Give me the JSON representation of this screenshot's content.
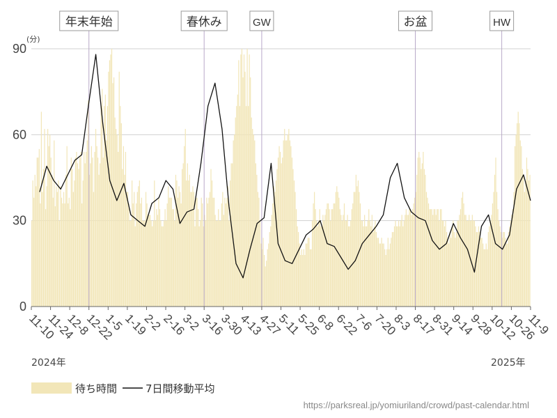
{
  "chart_data": {
    "type": "bar",
    "ylabel": "(分)",
    "ylim": [
      0,
      90
    ],
    "yticks": [
      0,
      30,
      60,
      90
    ],
    "x_tick_labels": [
      "11-10",
      "11-24",
      "12-8",
      "12-22",
      "1-5",
      "1-19",
      "2-2",
      "2-16",
      "3-2",
      "3-16",
      "3-30",
      "4-13",
      "4-27",
      "5-11",
      "5-25",
      "6-8",
      "6-22",
      "7-6",
      "7-20",
      "8-3",
      "8-17",
      "8-31",
      "9-14",
      "9-28",
      "10-12",
      "10-26",
      "11-9"
    ],
    "year_start": "2024年",
    "year_end": "2025年",
    "events": [
      {
        "label": "年末年始",
        "week": 6.0
      },
      {
        "label": "春休み",
        "week": 18.0
      },
      {
        "label": "GW",
        "week": 24.0
      },
      {
        "label": "お盆",
        "week": 40.0
      },
      {
        "label": "HW",
        "week": 49.0
      }
    ],
    "grid": true,
    "series": [
      {
        "name": "待ち時間",
        "color": "#f2e6b8",
        "values": [
          30,
          44,
          38,
          46,
          42,
          52,
          52,
          55,
          36,
          68,
          40,
          48,
          62,
          34,
          42,
          62,
          56,
          60,
          52,
          46,
          38,
          58,
          35,
          42,
          40,
          44,
          30,
          42,
          38,
          36,
          40,
          36,
          46,
          56,
          36,
          38,
          34,
          52,
          48,
          40,
          44,
          52,
          54,
          50,
          48,
          52,
          54,
          36,
          44,
          54,
          50,
          54,
          58,
          72,
          46,
          50,
          56,
          52,
          40,
          54,
          62,
          56,
          52,
          46,
          50,
          70,
          76,
          52,
          70,
          74,
          58,
          70,
          82,
          86,
          88,
          90,
          78,
          80,
          66,
          62,
          60,
          54,
          82,
          70,
          64,
          48,
          56,
          46,
          54,
          40,
          40,
          36,
          30,
          30,
          44,
          36,
          40,
          28,
          36,
          40,
          42,
          44,
          36,
          38,
          30,
          30,
          30,
          40,
          36,
          32,
          32,
          32,
          30,
          28,
          30,
          44,
          30,
          34,
          32,
          38,
          34,
          30,
          28,
          28,
          30,
          34,
          30,
          36,
          42,
          38,
          38,
          38,
          34,
          34,
          30,
          46,
          44,
          38,
          42,
          40,
          36,
          48,
          50,
          56,
          62,
          44,
          50,
          44,
          46,
          40,
          40,
          42,
          40,
          28,
          38,
          38,
          34,
          28,
          30,
          38,
          36,
          28,
          32,
          30,
          38,
          36,
          38,
          40,
          48,
          44,
          38,
          38,
          32,
          30,
          30,
          34,
          30,
          30,
          36,
          40,
          32,
          38,
          36,
          38,
          42,
          30,
          44,
          50,
          50,
          58,
          60,
          66,
          70,
          74,
          86,
          70,
          88,
          90,
          80,
          88,
          82,
          70,
          90,
          70,
          88,
          80,
          66,
          62,
          60,
          58,
          50,
          46,
          40,
          38,
          30,
          22,
          20,
          24,
          18,
          14,
          16,
          20,
          22,
          26,
          28,
          32,
          36,
          42,
          40,
          44,
          48,
          52,
          56,
          54,
          50,
          52,
          58,
          62,
          58,
          58,
          60,
          62,
          58,
          56,
          52,
          48,
          44,
          40,
          34,
          28,
          26,
          22,
          18,
          20,
          18,
          20,
          18,
          22,
          22,
          24,
          24,
          20,
          20,
          30,
          36,
          40,
          34,
          30,
          28,
          30,
          34,
          28,
          28,
          32,
          30,
          32,
          34,
          36,
          36,
          34,
          30,
          34,
          34,
          36,
          36,
          40,
          42,
          40,
          38,
          34,
          32,
          30,
          32,
          36,
          30,
          30,
          32,
          28,
          28,
          30,
          34,
          36,
          40,
          40,
          46,
          42,
          44,
          40,
          36,
          30,
          30,
          28,
          32,
          28,
          28,
          30,
          34,
          30,
          28,
          32,
          26,
          28,
          30,
          26,
          24,
          24,
          22,
          22,
          24,
          22,
          22,
          20,
          18,
          20,
          24,
          20,
          22,
          24,
          26,
          26,
          28,
          30,
          28,
          28,
          30,
          28,
          30,
          32,
          28,
          30,
          32,
          34,
          32,
          32,
          34,
          34,
          32,
          34,
          36,
          38,
          40,
          46,
          52,
          54,
          52,
          48,
          50,
          54,
          48,
          46,
          40,
          38,
          36,
          34,
          34,
          34,
          32,
          34,
          34,
          32,
          34,
          34,
          30,
          34,
          34,
          30,
          30,
          28,
          30,
          26,
          24,
          22,
          26,
          24,
          28,
          30,
          26,
          24,
          26,
          30,
          30,
          32,
          34,
          38,
          40,
          36,
          32,
          32,
          30,
          30,
          32,
          30,
          30,
          32,
          30,
          30,
          28,
          26,
          26,
          28,
          26,
          24,
          24,
          22,
          20,
          20,
          22,
          20,
          26,
          28,
          30,
          32,
          36,
          40,
          46,
          52,
          40,
          34,
          30,
          28,
          26,
          24,
          26,
          26,
          24,
          22,
          22,
          26,
          28,
          30,
          32,
          34,
          40,
          56,
          60,
          64,
          68,
          64,
          58,
          56,
          48,
          46,
          40,
          44,
          52,
          48,
          44,
          46
        ],
        "note_values": "approximate daily bar heights in minutes"
      },
      {
        "name": "7日間移動平均",
        "color": "#111111",
        "weekly": [
          40,
          49,
          44,
          41,
          46,
          51,
          53,
          71,
          88,
          64,
          44,
          37,
          43,
          32,
          30,
          28,
          36,
          38,
          44,
          41,
          29,
          33,
          34,
          50,
          70,
          78,
          62,
          35,
          15,
          10,
          20,
          29,
          31,
          50,
          22,
          16,
          15,
          20,
          25,
          27,
          30,
          22,
          21,
          17,
          13,
          16,
          22,
          25,
          28,
          32,
          45,
          50,
          38,
          33,
          31,
          30,
          23,
          20,
          22,
          29,
          24,
          20,
          12,
          28,
          32,
          22,
          20,
          25,
          41,
          46,
          37
        ]
      }
    ],
    "legend": [
      "待ち時間",
      "7日間移動平均"
    ],
    "source": "https://parksreal.jp/yomiuriland/crowd/past-calendar.html"
  }
}
